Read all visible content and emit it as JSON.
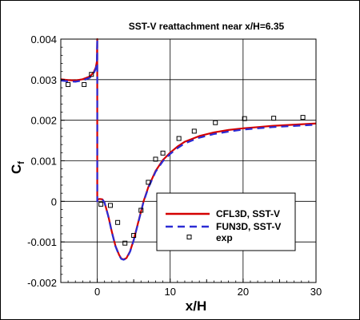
{
  "chart_data": {
    "type": "line",
    "title": "SST-V reattachment near x/H=6.35",
    "xlabel": "x/H",
    "ylabel": "C",
    "ylabel_sub": "f",
    "xlim": [
      -5,
      30
    ],
    "ylim": [
      -0.002,
      0.004
    ],
    "x_ticks": [
      0,
      10,
      20,
      30
    ],
    "x_tick_labels": [
      "0",
      "10",
      "20",
      "30"
    ],
    "y_ticks": [
      -0.002,
      -0.001,
      0,
      0.001,
      0.002,
      0.003,
      0.004
    ],
    "y_tick_labels": [
      "-0.002",
      "-0.001",
      "0",
      "0.001",
      "0.002",
      "0.003",
      "0.004"
    ],
    "grid": true,
    "legend_position": "bottom-right",
    "series": [
      {
        "name": "CFL3D, SST-V",
        "color": "#d40000",
        "style": "solid",
        "x": [
          -5,
          -4,
          -3,
          -2,
          -1,
          -0.5,
          -0.2,
          -0.05,
          0,
          0,
          0.05,
          0.3,
          0.7,
          1.0,
          1.5,
          2.0,
          2.5,
          3.0,
          3.3,
          3.6,
          4.0,
          4.5,
          5.0,
          5.5,
          6.0,
          6.35,
          7,
          8,
          9,
          10,
          11,
          12,
          14,
          16,
          18,
          20,
          22,
          24,
          26,
          28,
          30
        ],
        "y": [
          0.00301,
          0.00299,
          0.00298,
          0.00301,
          0.00308,
          0.00318,
          0.0033,
          0.00345,
          0.004,
          0.0,
          4e-05,
          6e-05,
          5e-05,
          -3e-05,
          -0.00035,
          -0.00075,
          -0.0011,
          -0.00132,
          -0.00141,
          -0.00143,
          -0.0014,
          -0.00123,
          -0.00095,
          -0.0006,
          -0.00025,
          0.0,
          0.00035,
          0.00075,
          0.00102,
          0.0012,
          0.00135,
          0.00147,
          0.00161,
          0.0017,
          0.00176,
          0.0018,
          0.00183,
          0.00186,
          0.00188,
          0.0019,
          0.00192
        ]
      },
      {
        "name": "FUN3D, SST-V",
        "color": "#2b2bd4",
        "style": "dashed",
        "x": [
          -5,
          -4,
          -3,
          -2,
          -1,
          -0.5,
          -0.2,
          -0.05,
          0,
          0,
          0.05,
          0.3,
          0.7,
          1.0,
          1.5,
          2.0,
          2.5,
          3.0,
          3.3,
          3.6,
          4.0,
          4.5,
          5.0,
          5.5,
          6.0,
          6.35,
          7,
          8,
          9,
          10,
          11,
          12,
          14,
          16,
          18,
          20,
          22,
          24,
          26,
          28,
          30
        ],
        "y": [
          0.00298,
          0.00296,
          0.00295,
          0.00298,
          0.00305,
          0.00315,
          0.00327,
          0.00342,
          0.004,
          0.0,
          4e-05,
          6e-05,
          5e-05,
          -3e-05,
          -0.00036,
          -0.00076,
          -0.00111,
          -0.00133,
          -0.00142,
          -0.00144,
          -0.00141,
          -0.00124,
          -0.00096,
          -0.00061,
          -0.00026,
          -1e-05,
          0.00033,
          0.00073,
          0.00099,
          0.00117,
          0.00131,
          0.00143,
          0.00157,
          0.00166,
          0.00172,
          0.00177,
          0.0018,
          0.00183,
          0.00185,
          0.00187,
          0.00189
        ]
      },
      {
        "name": "exp",
        "color": "#000000",
        "style": "markers",
        "x": [
          -4.0,
          -1.8,
          -0.8,
          0.5,
          1.8,
          2.8,
          3.8,
          5.0,
          6.0,
          7.0,
          8.0,
          9.0,
          11.2,
          13.3,
          16.2,
          20.2,
          24.2,
          28.2
        ],
        "y": [
          0.00288,
          0.00288,
          0.00313,
          -7e-05,
          -0.0001,
          -0.00052,
          -0.00103,
          -0.00084,
          -0.00022,
          0.00047,
          0.00104,
          0.00119,
          0.00155,
          0.00173,
          0.00194,
          0.00204,
          0.00205,
          0.00207
        ]
      }
    ]
  }
}
